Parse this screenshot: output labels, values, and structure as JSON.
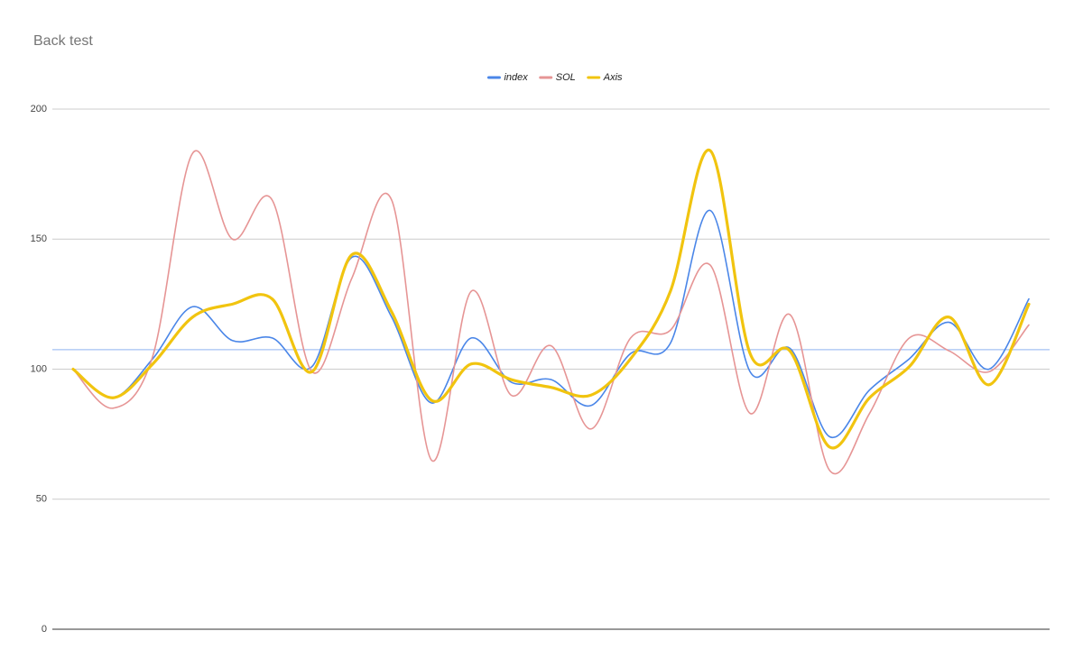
{
  "chart_data": {
    "type": "line",
    "title": "Back test",
    "series": [
      {
        "name": "index",
        "color": "#4a86e8",
        "width": 1.6,
        "values": [
          100,
          89,
          104,
          124,
          111,
          112,
          101,
          143,
          120,
          87,
          112,
          95,
          96,
          86,
          106,
          110,
          161,
          99,
          108,
          74,
          92,
          104,
          118,
          100,
          127
        ]
      },
      {
        "name": "SOL",
        "color": "#e69595",
        "width": 1.6,
        "values": [
          100,
          85,
          105,
          183,
          150,
          165,
          99,
          135,
          165,
          65,
          130,
          90,
          109,
          77,
          112,
          115,
          140,
          83,
          121,
          61,
          83,
          112,
          107,
          99,
          117
        ]
      },
      {
        "name": "Axis",
        "color": "#f1c40f",
        "width": 3.2,
        "values": [
          100,
          89,
          102,
          120,
          125,
          127,
          99,
          144,
          122,
          88,
          102,
          96,
          93,
          90,
          104,
          130,
          184,
          106,
          107,
          70,
          89,
          101,
          120,
          94,
          125
        ]
      }
    ],
    "reference_line": {
      "value": 107.5,
      "color": "#a4c2f4"
    },
    "ylim": [
      0,
      200
    ],
    "yticks": [
      0,
      50,
      100,
      150,
      200
    ],
    "grid": true,
    "smooth": true,
    "legend": "top"
  }
}
